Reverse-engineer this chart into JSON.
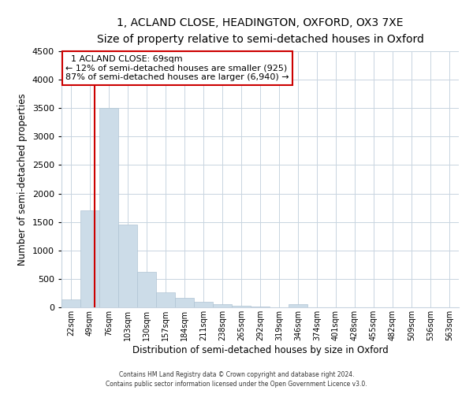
{
  "title": "1, ACLAND CLOSE, HEADINGTON, OXFORD, OX3 7XE",
  "subtitle": "Size of property relative to semi-detached houses in Oxford",
  "xlabel": "Distribution of semi-detached houses by size in Oxford",
  "ylabel": "Number of semi-detached properties",
  "bar_color": "#ccdce8",
  "bar_edge_color": "#b0c4d4",
  "bin_labels": [
    "22sqm",
    "49sqm",
    "76sqm",
    "103sqm",
    "130sqm",
    "157sqm",
    "184sqm",
    "211sqm",
    "238sqm",
    "265sqm",
    "292sqm",
    "319sqm",
    "346sqm",
    "374sqm",
    "401sqm",
    "428sqm",
    "455sqm",
    "482sqm",
    "509sqm",
    "536sqm",
    "563sqm"
  ],
  "bar_heights": [
    140,
    1700,
    3500,
    1450,
    620,
    270,
    170,
    95,
    50,
    30,
    10,
    5,
    50,
    0,
    0,
    0,
    0,
    0,
    0,
    0,
    0
  ],
  "ylim": [
    0,
    4500
  ],
  "yticks": [
    0,
    500,
    1000,
    1500,
    2000,
    2500,
    3000,
    3500,
    4000,
    4500
  ],
  "property_sqm": 69,
  "annotation_title": "1 ACLAND CLOSE: 69sqm",
  "annotation_line1": "← 12% of semi-detached houses are smaller (925)",
  "annotation_line2": "87% of semi-detached houses are larger (6,940) →",
  "annotation_box_color": "#ffffff",
  "annotation_box_edge_color": "#cc0000",
  "property_line_color": "#cc0000",
  "footer1": "Contains HM Land Registry data © Crown copyright and database right 2024.",
  "footer2": "Contains public sector information licensed under the Open Government Licence v3.0.",
  "background_color": "#ffffff",
  "grid_color": "#c8d4e0"
}
